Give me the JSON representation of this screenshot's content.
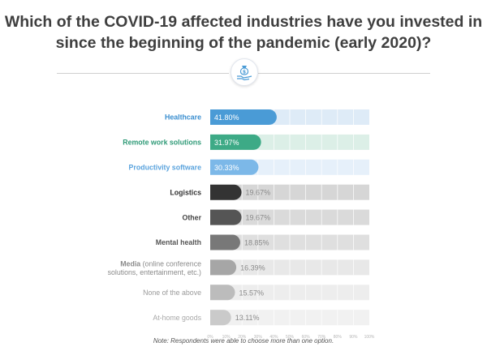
{
  "title": "Which of the COVID-19 affected industries have you invested in since the beginning of the pandemic (early 2020)?",
  "icon": "money-bag-on-hand-icon",
  "note": "Note: Respondents were able to choose more than one option.",
  "chart_data": {
    "type": "bar",
    "orientation": "horizontal",
    "xlim": [
      0,
      100
    ],
    "tick_labels": [
      "0%",
      "10%",
      "20%",
      "30%",
      "40%",
      "50%",
      "60%",
      "70%",
      "80%",
      "90%",
      "100%"
    ],
    "categories": [
      {
        "label": "Healthcare",
        "sublabel": "",
        "value": 41.8,
        "value_label": "41.80%",
        "color": "#4a9bd6",
        "track": "#deebf7",
        "label_color": "#3b8fd0"
      },
      {
        "label": "Remote work solutions",
        "sublabel": "",
        "value": 31.97,
        "value_label": "31.97%",
        "color": "#3daa86",
        "track": "#dcefe7",
        "label_color": "#2f9a77"
      },
      {
        "label": "Productivity software",
        "sublabel": "",
        "value": 30.33,
        "value_label": "30.33%",
        "color": "#7cb8e8",
        "track": "#e6f0fa",
        "label_color": "#5aa3dd"
      },
      {
        "label": "Logistics",
        "sublabel": "",
        "value": 19.67,
        "value_label": "19.67%",
        "color": "#333333",
        "track": "#d6d6d6",
        "label_color": "#333333"
      },
      {
        "label": "Other",
        "sublabel": "",
        "value": 19.67,
        "value_label": "19.67%",
        "color": "#555555",
        "track": "#dadada",
        "label_color": "#444444"
      },
      {
        "label": "Mental health",
        "sublabel": "",
        "value": 18.85,
        "value_label": "18.85%",
        "color": "#787878",
        "track": "#dfdfdf",
        "label_color": "#555555"
      },
      {
        "label": "Media",
        "sublabel": " (online conference solutions, entertainment, etc.)",
        "value": 16.39,
        "value_label": "16.39%",
        "color": "#a6a6a6",
        "track": "#e8e8e8",
        "label_color": "#8a8a8a"
      },
      {
        "label": "None of the above",
        "sublabel": "",
        "value": 15.57,
        "value_label": "15.57%",
        "color": "#bcbcbc",
        "track": "#ededed",
        "label_color": "#9a9a9a"
      },
      {
        "label": "At-home goods",
        "sublabel": "",
        "value": 13.11,
        "value_label": "13.11%",
        "color": "#cacaca",
        "track": "#f1f1f1",
        "label_color": "#a8a8a8"
      }
    ]
  }
}
